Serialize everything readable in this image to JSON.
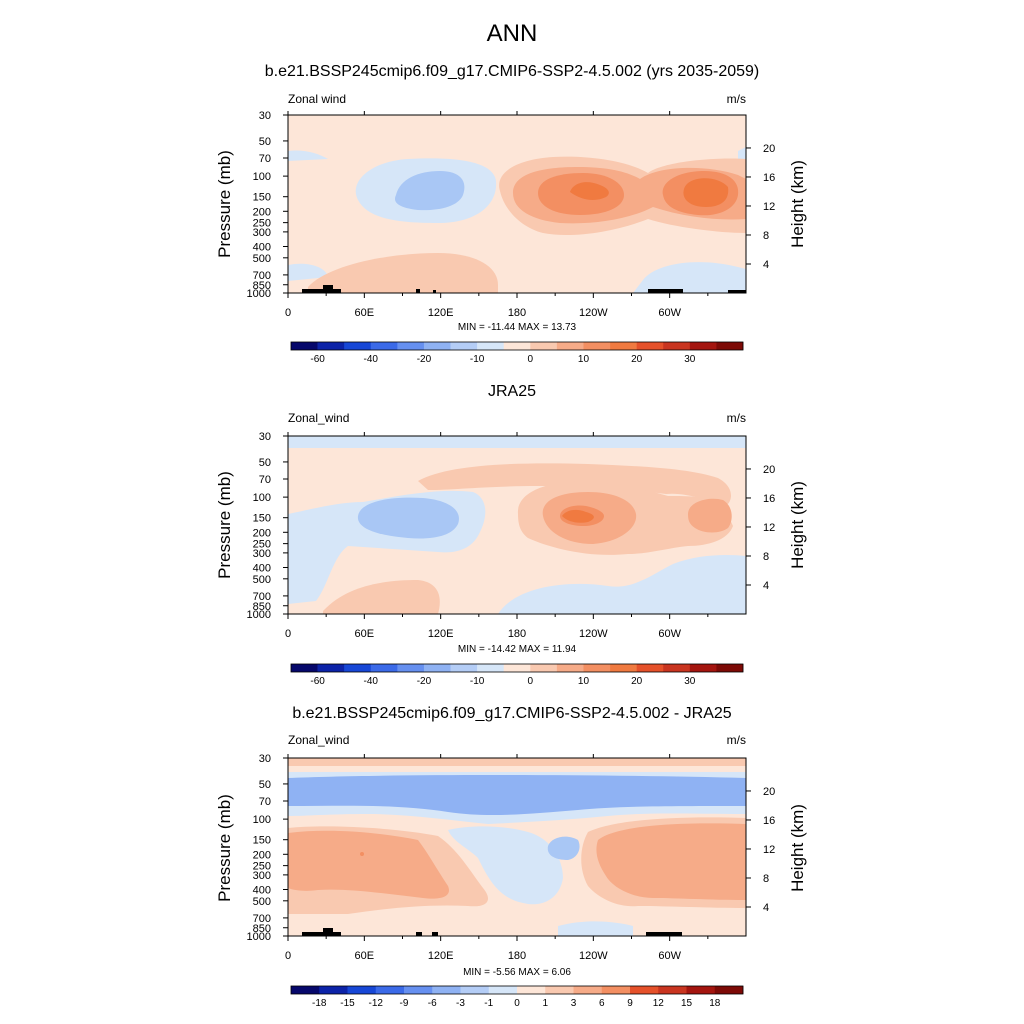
{
  "figure": {
    "title": "ANN"
  },
  "panels": [
    {
      "title": "b.e21.BSSP245cmip6.f09_g17.CMIP6-SSP2-4.5.002 (yrs 2035-2059)",
      "left_label": "Zonal wind",
      "units": "m/s",
      "ylabel_left": "Pressure (mb)",
      "ylabel_right": "Height (km)",
      "stats": "MIN = -11.44  MAX =  13.73",
      "colorbar_labels": [
        "-60",
        "-40",
        "-20",
        "-10",
        "0",
        "10",
        "20",
        "30"
      ]
    },
    {
      "title": "JRA25",
      "left_label": "Zonal_wind",
      "units": "m/s",
      "ylabel_left": "Pressure (mb)",
      "ylabel_right": "Height (km)",
      "stats": "MIN = -14.42  MAX =  11.94",
      "colorbar_labels": [
        "-60",
        "-40",
        "-20",
        "-10",
        "0",
        "10",
        "20",
        "30"
      ]
    },
    {
      "title": "b.e21.BSSP245cmip6.f09_g17.CMIP6-SSP2-4.5.002 - JRA25",
      "left_label": "Zonal_wind",
      "units": "m/s",
      "ylabel_left": "Pressure (mb)",
      "ylabel_right": "Height (km)",
      "stats": "MIN =  -5.56  MAX =  6.06",
      "colorbar_labels": [
        "-18",
        "-15",
        "-12",
        "-9",
        "-6",
        "-3",
        "-1",
        "0",
        "1",
        "3",
        "6",
        "9",
        "12",
        "15",
        "18"
      ]
    }
  ],
  "colors": {
    "bg": "#fde6d8",
    "blue_1": "#d6e6f8",
    "blue_2": "#a9c7f5",
    "blue_3": "#8fb2f3",
    "red_1": "#f9c9b0",
    "red_2": "#f6ab88",
    "red_3": "#f38f62",
    "red_4": "#f07a40",
    "topo": "#000000"
  },
  "chart_data": [
    {
      "type": "heatmap",
      "title": "b.e21.BSSP245cmip6.f09_g17.CMIP6-SSP2-4.5.002 (yrs 2035-2059)",
      "variable": "Zonal wind",
      "units": "m/s",
      "xlabel": "",
      "ylabel": "Pressure (mb)",
      "ylabel_right": "Height (km)",
      "x_ticks": [
        "0",
        "60E",
        "120E",
        "180",
        "120W",
        "60W"
      ],
      "x_tick_values": [
        0,
        60,
        120,
        180,
        240,
        300
      ],
      "xlim": [
        0,
        360
      ],
      "y_ticks": [
        "30",
        "50",
        "70",
        "100",
        "150",
        "200",
        "250",
        "300",
        "400",
        "500",
        "700",
        "850",
        "1000"
      ],
      "y_tick_values": [
        30,
        50,
        70,
        100,
        150,
        200,
        250,
        300,
        400,
        500,
        700,
        850,
        1000
      ],
      "ylim": [
        1000,
        30
      ],
      "y_scale": "log",
      "y_right_ticks": [
        "4",
        "8",
        "12",
        "16",
        "20"
      ],
      "y_right_values": [
        4,
        8,
        12,
        16,
        20
      ],
      "min": -11.44,
      "max": 13.73,
      "contour_levels": [
        -60,
        -40,
        -20,
        -10,
        0,
        10,
        20,
        30
      ]
    },
    {
      "type": "heatmap",
      "title": "JRA25",
      "variable": "Zonal_wind",
      "units": "m/s",
      "xlabel": "",
      "ylabel": "Pressure (mb)",
      "ylabel_right": "Height (km)",
      "x_ticks": [
        "0",
        "60E",
        "120E",
        "180",
        "120W",
        "60W"
      ],
      "x_tick_values": [
        0,
        60,
        120,
        180,
        240,
        300
      ],
      "xlim": [
        0,
        360
      ],
      "y_ticks": [
        "30",
        "50",
        "70",
        "100",
        "150",
        "200",
        "250",
        "300",
        "400",
        "500",
        "700",
        "850",
        "1000"
      ],
      "y_tick_values": [
        30,
        50,
        70,
        100,
        150,
        200,
        250,
        300,
        400,
        500,
        700,
        850,
        1000
      ],
      "ylim": [
        1000,
        30
      ],
      "y_scale": "log",
      "y_right_ticks": [
        "4",
        "8",
        "12",
        "16",
        "20"
      ],
      "y_right_values": [
        4,
        8,
        12,
        16,
        20
      ],
      "min": -14.42,
      "max": 11.94,
      "contour_levels": [
        -60,
        -40,
        -20,
        -10,
        0,
        10,
        20,
        30
      ]
    },
    {
      "type": "heatmap",
      "title": "b.e21.BSSP245cmip6.f09_g17.CMIP6-SSP2-4.5.002 - JRA25",
      "variable": "Zonal_wind",
      "units": "m/s",
      "xlabel": "",
      "ylabel": "Pressure (mb)",
      "ylabel_right": "Height (km)",
      "x_ticks": [
        "0",
        "60E",
        "120E",
        "180",
        "120W",
        "60W"
      ],
      "x_tick_values": [
        0,
        60,
        120,
        180,
        240,
        300
      ],
      "xlim": [
        0,
        360
      ],
      "y_ticks": [
        "30",
        "50",
        "70",
        "100",
        "150",
        "200",
        "250",
        "300",
        "400",
        "500",
        "700",
        "850",
        "1000"
      ],
      "y_tick_values": [
        30,
        50,
        70,
        100,
        150,
        200,
        250,
        300,
        400,
        500,
        700,
        850,
        1000
      ],
      "ylim": [
        1000,
        30
      ],
      "y_scale": "log",
      "y_right_ticks": [
        "4",
        "8",
        "12",
        "16",
        "20"
      ],
      "y_right_values": [
        4,
        8,
        12,
        16,
        20
      ],
      "min": -5.56,
      "max": 6.06,
      "contour_levels": [
        -18,
        -15,
        -12,
        -9,
        -6,
        -3,
        -1,
        0,
        1,
        3,
        6,
        9,
        12,
        15,
        18
      ]
    }
  ]
}
